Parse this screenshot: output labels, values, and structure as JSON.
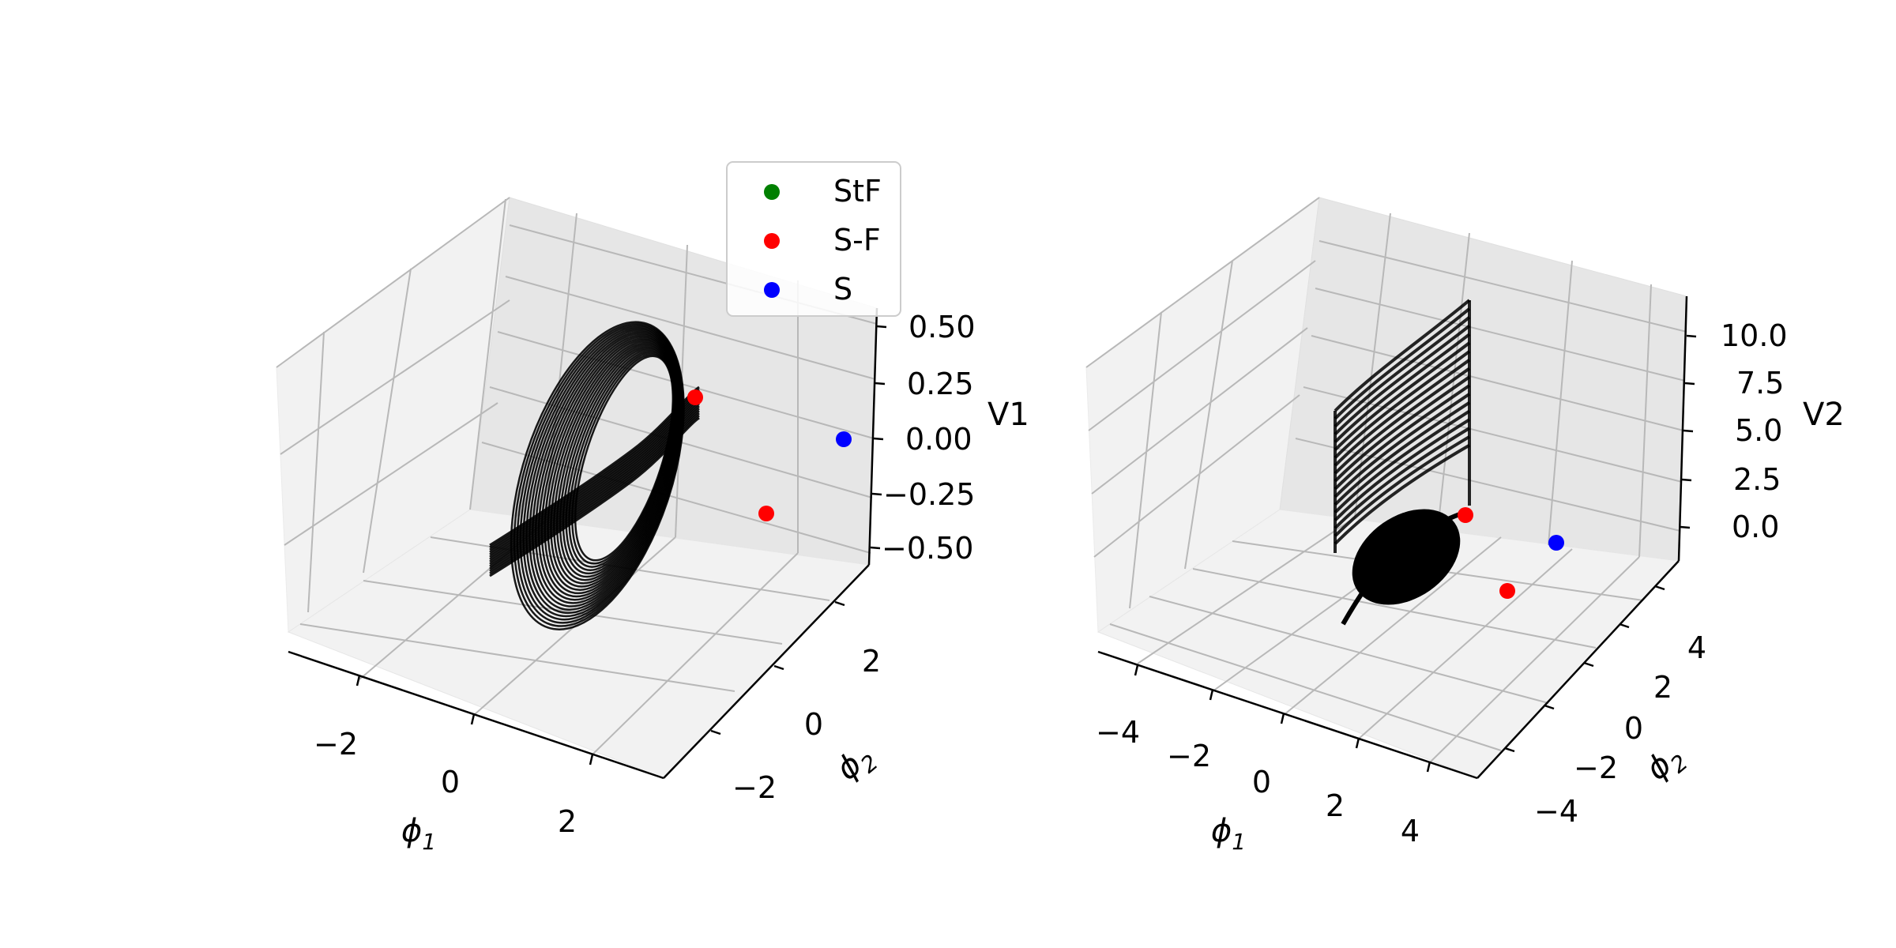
{
  "chart_data": [
    {
      "type": "scatter3d",
      "xlabel": "φ1",
      "ylabel": "φ2",
      "zlabel": "V1",
      "xticks": [
        "−2",
        "0",
        "2"
      ],
      "yticks": [
        "−2",
        "0",
        "2"
      ],
      "zticks": [
        "0.50",
        "0.25",
        "0.00",
        "−0.25",
        "−0.50"
      ],
      "legend": {
        "placement": "top-right",
        "entries": [
          {
            "label": "StF",
            "color": "#008000"
          },
          {
            "label": "S-F",
            "color": "#ff0000"
          },
          {
            "label": "S",
            "color": "#0000ff"
          }
        ]
      },
      "points": [
        {
          "label": "S-F",
          "x": 1.7,
          "y": -1.5,
          "z": 0.2
        },
        {
          "label": "S-F",
          "x": 2.6,
          "y": 0.5,
          "z": -0.35
        },
        {
          "label": "S",
          "x": 3.0,
          "y": 2.0,
          "z": 0.0
        }
      ],
      "trajectory": {
        "description_color": "#000000",
        "shape": "nested elliptical orbits around origin with a transverse band"
      }
    },
    {
      "type": "scatter3d",
      "xlabel": "φ1",
      "ylabel": "φ2",
      "zlabel": "V2",
      "xticks": [
        "−4",
        "−2",
        "0",
        "2",
        "4"
      ],
      "yticks": [
        "−4",
        "−2",
        "0",
        "2",
        "4"
      ],
      "zticks": [
        "10.0",
        "7.5",
        "5.0",
        "2.5",
        "0.0"
      ],
      "points": [
        {
          "label": "S-F",
          "x": 1.5,
          "y": -1.0,
          "z": 0.0
        },
        {
          "label": "S-F",
          "x": 3.8,
          "y": -1.0,
          "z": 0.0
        },
        {
          "label": "S",
          "x": 4.8,
          "y": 1.5,
          "z": 0.0
        }
      ],
      "trajectory": {
        "description_color": "#000000",
        "shape": "stack of curves rising to V2≈12 plus a closed orbit near V2≈0"
      }
    }
  ]
}
